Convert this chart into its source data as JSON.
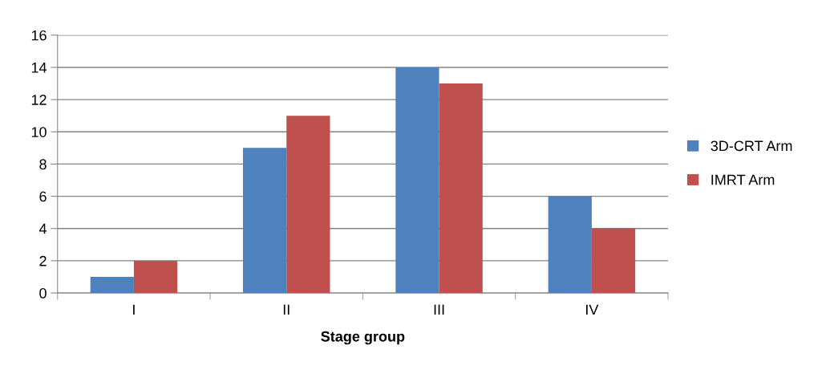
{
  "chart_data": {
    "type": "bar",
    "xlabel": "Stage group",
    "categories": [
      "I",
      "II",
      "III",
      "IV"
    ],
    "series": [
      {
        "name": "3D-CRT Arm",
        "color": "#4f81bd",
        "values": [
          1,
          9,
          14,
          6
        ]
      },
      {
        "name": "IMRT Arm",
        "color": "#c0504d",
        "values": [
          2,
          11,
          13,
          4
        ]
      }
    ],
    "ylim": [
      0,
      16
    ],
    "yticks": [
      0,
      2,
      4,
      6,
      8,
      10,
      12,
      14,
      16
    ],
    "grid": "y",
    "legend": "right"
  }
}
